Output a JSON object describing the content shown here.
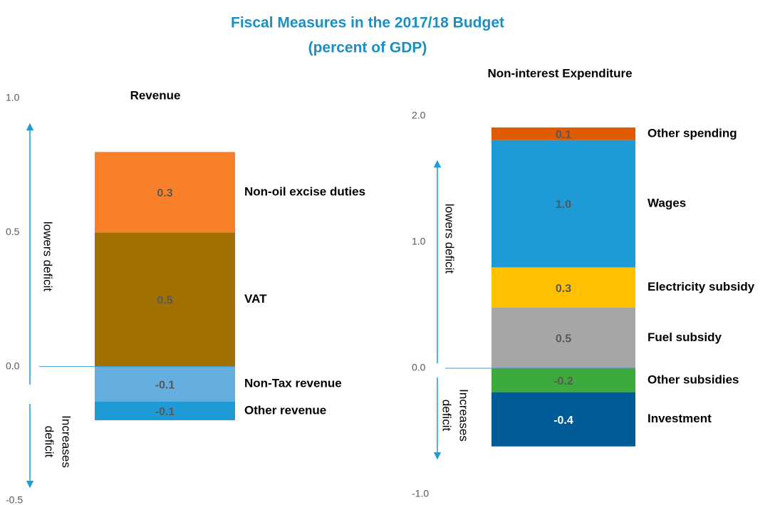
{
  "title": "Fiscal Measures in the 2017/18 Budget",
  "subtitle": "(percent of GDP)",
  "chart_data": [
    {
      "type": "stacked_bar",
      "title": "Revenue",
      "ylim": [
        -0.5,
        1.0
      ],
      "yticks": [
        -0.5,
        {
          "value": 0,
          "label": "0.0"
        },
        0.5,
        {
          "value": 1,
          "label": "1.0"
        }
      ],
      "annotations": {
        "lowers": [
          "lowers deficit"
        ],
        "increases": [
          "Increases",
          "deficit"
        ]
      },
      "series": [
        {
          "name": "VAT",
          "color": "#a07000",
          "values": [
            0.5
          ]
        },
        {
          "name": "Non-oil excise duties",
          "color": "#f9802a",
          "values": [
            0.3
          ]
        },
        {
          "name": "Non-Tax revenue",
          "color": "#64aee0",
          "values": [
            -0.13
          ],
          "value_labels": [
            "-0.1"
          ]
        },
        {
          "name": "Other revenue",
          "color": "#1e9ad6",
          "values": [
            -0.07
          ],
          "value_labels": [
            "-0.1"
          ]
        }
      ]
    },
    {
      "type": "stacked_bar",
      "title": "Non-interest Expenditure",
      "ylim": [
        -1.0,
        2.0
      ],
      "yticks": [
        {
          "value": -1,
          "label": "-1.0"
        },
        {
          "value": 0,
          "label": "0.0"
        },
        {
          "value": 1,
          "label": "1.0"
        },
        {
          "value": 2,
          "label": "2.0"
        }
      ],
      "annotations": {
        "lowers": [
          "lowers deficit"
        ],
        "increases": [
          "Increases",
          "deficit"
        ]
      },
      "series": [
        {
          "name": "Fuel subsidy",
          "color": "#a6a6a6",
          "values": [
            0.48
          ],
          "value_labels": [
            "0.5"
          ]
        },
        {
          "name": "Electricity subsidy",
          "color": "#ffc000",
          "values": [
            0.32
          ],
          "value_labels": [
            "0.3"
          ]
        },
        {
          "name": "Wages",
          "color": "#1e9ad6",
          "values": [
            1.01
          ],
          "value_labels": [
            "1.0"
          ]
        },
        {
          "name": "Other spending",
          "color": "#e05a00",
          "values": [
            0.1
          ]
        },
        {
          "name": "Other subsidies",
          "color": "#3daa3d",
          "values": [
            -0.19
          ],
          "value_labels": [
            "-0.2"
          ]
        },
        {
          "name": "Investment",
          "color": "#005b96",
          "values": [
            -0.43
          ],
          "value_labels": [
            "-0.4"
          ]
        }
      ]
    }
  ]
}
